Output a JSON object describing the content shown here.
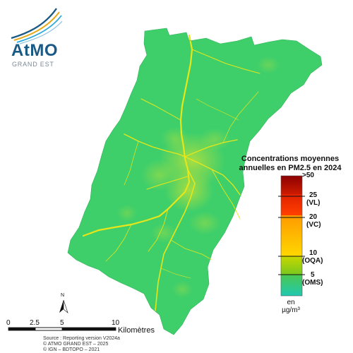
{
  "logo": {
    "brand_prefix": "AtMO",
    "brand_sub": "GRAND EST",
    "brand_color": "#1c5a86"
  },
  "legend": {
    "title_line1": "Concentrations moyennes",
    "title_line2": "annuelles en PM2.5 en 2024",
    "ticks": [
      {
        "label": ">50",
        "value": 50
      },
      {
        "label": "25",
        "sub": "(VL)",
        "value": 25
      },
      {
        "label": "20",
        "sub": "(VC)",
        "value": 20
      },
      {
        "label": "10",
        "sub": "(OQA)",
        "value": 10
      },
      {
        "label": "5",
        "sub": "(OMS)",
        "value": 5
      }
    ],
    "unit_line1": "en",
    "unit_line2": "µg/m³",
    "colors": {
      "max": "#8b0000",
      "vl": "#ff4000",
      "vc": "#ffd800",
      "oqa": "#78c81e",
      "oms": "#20c8b0"
    }
  },
  "map_colors": {
    "base_fill": "#3fcf6a",
    "road_color": "#e6e61a",
    "urban_color": "#8ad83a"
  },
  "scale_bar": {
    "labels": [
      "0",
      "2.5",
      "5",
      "10"
    ],
    "unit": "Kilomètres"
  },
  "north_arrow": {
    "label": "N"
  },
  "source": {
    "line1": "Source : Reporting version V2024a",
    "line2": "© ATMO GRAND EST – 2025",
    "line3": "© IGN – BDTOPO – 2021"
  }
}
